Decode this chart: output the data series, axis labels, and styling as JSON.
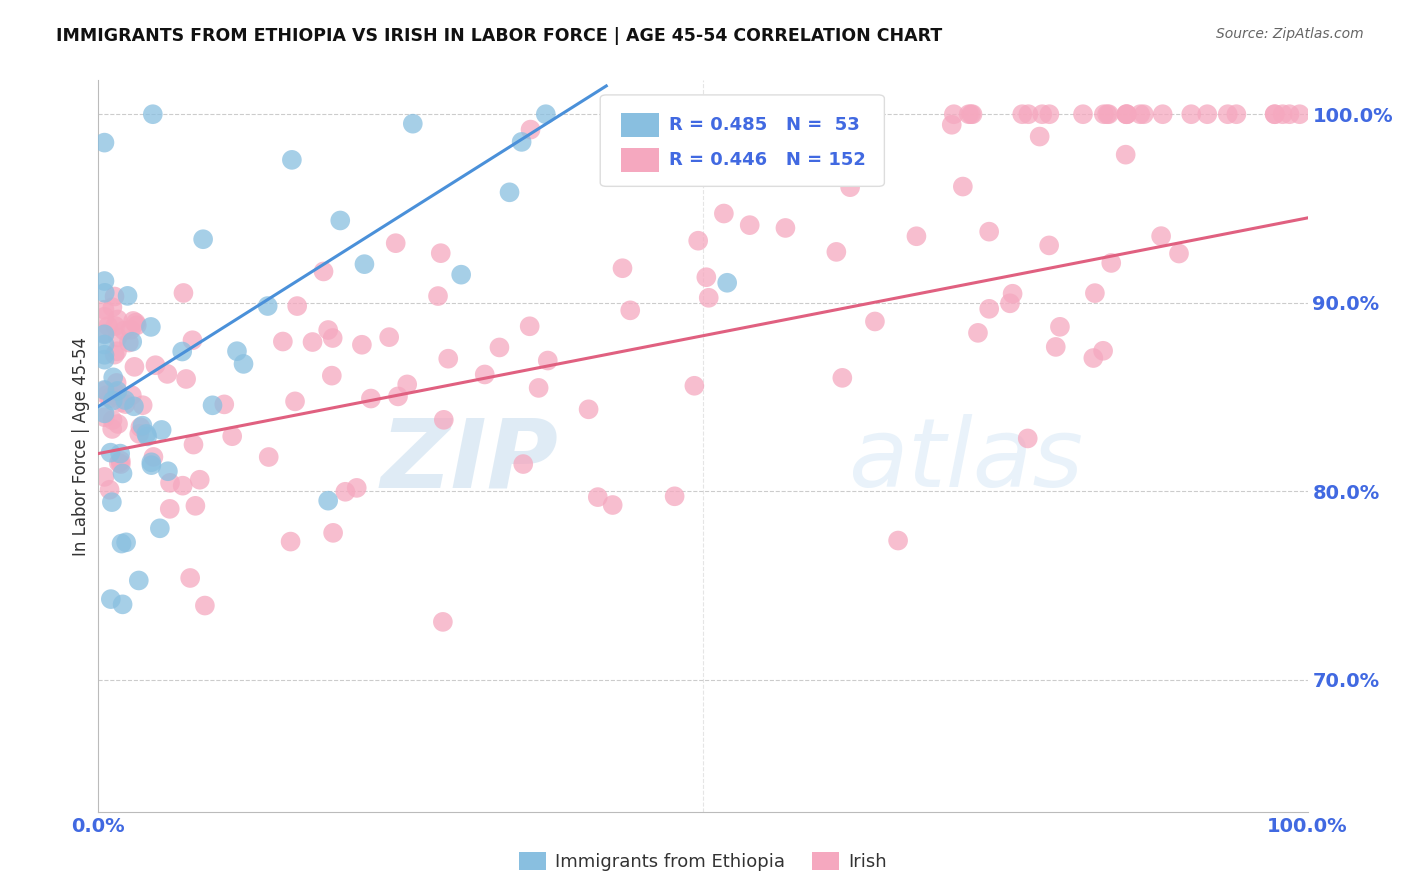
{
  "title": "IMMIGRANTS FROM ETHIOPIA VS IRISH IN LABOR FORCE | AGE 45-54 CORRELATION CHART",
  "source": "Source: ZipAtlas.com",
  "ylabel": "In Labor Force | Age 45-54",
  "xlim": [
    0.0,
    1.0
  ],
  "ylim": [
    0.63,
    1.018
  ],
  "yticks": [
    0.7,
    0.8,
    0.9,
    1.0
  ],
  "ytick_labels": [
    "70.0%",
    "80.0%",
    "90.0%",
    "100.0%"
  ],
  "xtick_labels": [
    "0.0%",
    "",
    "",
    "",
    "",
    "100.0%"
  ],
  "blue_R": 0.485,
  "blue_N": 53,
  "pink_R": 0.446,
  "pink_N": 152,
  "blue_color": "#89bfe0",
  "pink_color": "#f5a8bf",
  "blue_line_color": "#4a90d9",
  "pink_line_color": "#e06080",
  "tick_label_color": "#4169e1",
  "background_color": "#ffffff",
  "grid_color": "#cccccc",
  "watermark_zip_color": "#b8d8f0",
  "watermark_atlas_color": "#c8e4f8",
  "legend_box_color": "#f0f8ff"
}
